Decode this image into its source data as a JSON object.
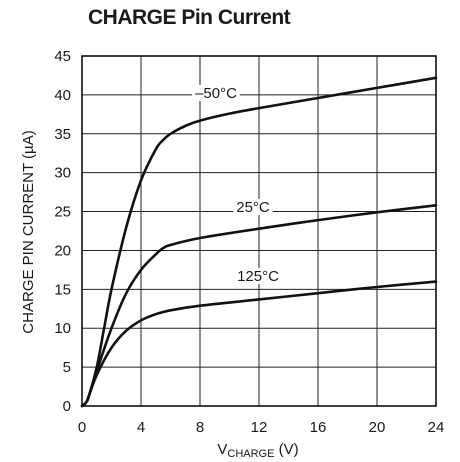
{
  "chart_data": {
    "type": "line",
    "title": "CHARGE Pin Current",
    "xlabel_main": "V",
    "xlabel_sub": "CHARGE",
    "xlabel_unit": " (V)",
    "ylabel": "CHARGE PIN CURRENT (µA)",
    "xlim": [
      0,
      24
    ],
    "ylim": [
      0,
      45
    ],
    "xticks": [
      0,
      4,
      8,
      12,
      16,
      20,
      24
    ],
    "yticks": [
      0,
      5,
      10,
      15,
      20,
      25,
      30,
      35,
      40,
      45
    ],
    "grid": true,
    "line_color": "#111111",
    "series": [
      {
        "name": "–50°C",
        "x": [
          0,
          0.3,
          0.5,
          1,
          1.5,
          2,
          3,
          4,
          5,
          5.5,
          6,
          7,
          8,
          10,
          12,
          16,
          20,
          24
        ],
        "y": [
          0,
          0.5,
          1.5,
          5,
          10,
          15,
          23,
          29,
          33,
          34.2,
          35,
          36,
          36.7,
          37.6,
          38.3,
          39.6,
          40.9,
          42.2
        ]
      },
      {
        "name": "25°C",
        "x": [
          0,
          0.3,
          0.5,
          1,
          2,
          3,
          4,
          5,
          5.5,
          6,
          8,
          12,
          16,
          20,
          24
        ],
        "y": [
          0,
          0.5,
          1.5,
          4.5,
          10,
          14.5,
          17.5,
          19.5,
          20.3,
          20.7,
          21.6,
          22.8,
          23.9,
          24.9,
          25.8
        ]
      },
      {
        "name": "125°C",
        "x": [
          0,
          0.3,
          0.5,
          1,
          2,
          3,
          4,
          5,
          6,
          8,
          12,
          16,
          20,
          24
        ],
        "y": [
          0,
          0.5,
          1.5,
          4,
          7.5,
          9.7,
          11,
          11.8,
          12.3,
          12.9,
          13.7,
          14.5,
          15.3,
          16
        ]
      }
    ]
  }
}
